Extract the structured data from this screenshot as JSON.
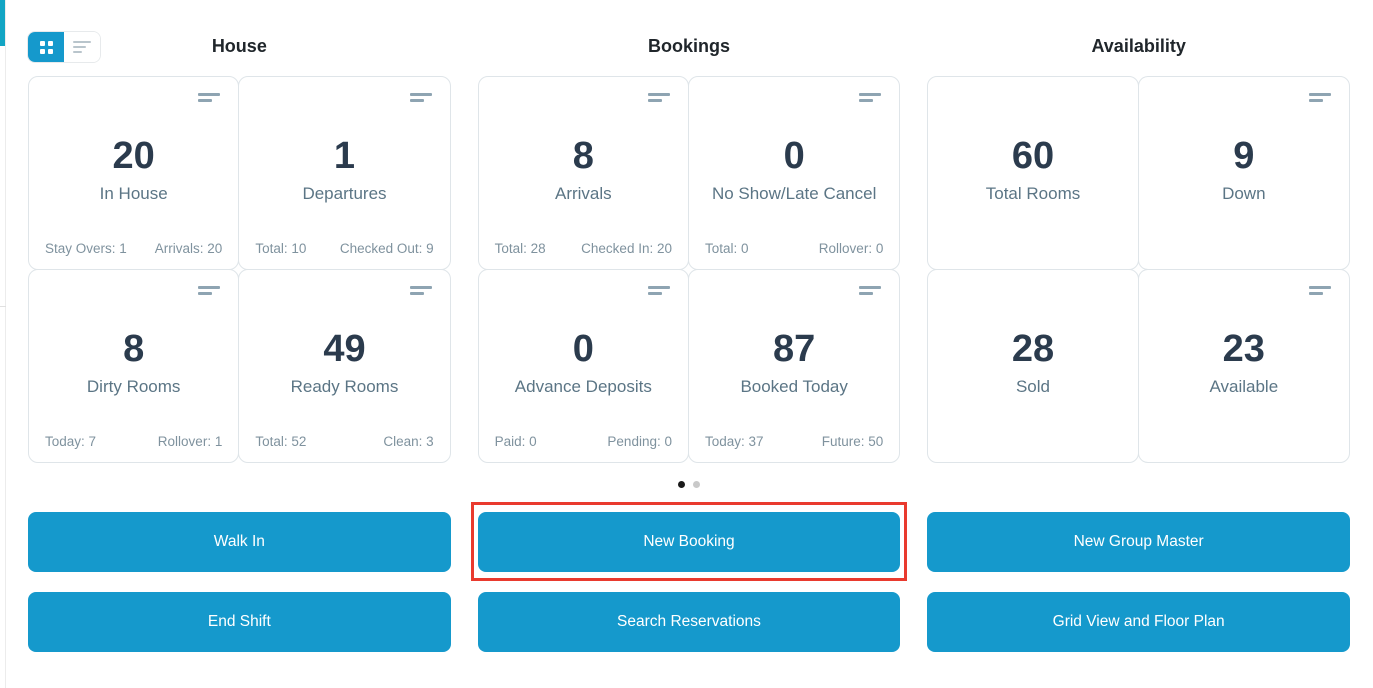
{
  "colors": {
    "primary_blue": "#1599cc",
    "highlight_red": "#e93a2e",
    "accent_edge_bar": "#12a5c4",
    "value_text": "#2b3b4d",
    "label_text": "#5b7585",
    "stat_text": "#7f929e",
    "card_border": "#dfe5e9",
    "dot_active": "#1a1a1a",
    "dot_inactive": "#c9c9c9"
  },
  "view_toggle": {
    "grid": {
      "icon": "grid-view-icon",
      "active": true
    },
    "list": {
      "icon": "list-view-icon",
      "active": false
    }
  },
  "columns": [
    {
      "title": "House",
      "cards": [
        {
          "value": "20",
          "label": "In House",
          "menu_icon": true,
          "stats": {
            "left": "Stay Overs: 1",
            "right": "Arrivals: 20"
          }
        },
        {
          "value": "1",
          "label": "Departures",
          "menu_icon": true,
          "stats": {
            "left": "Total: 10",
            "right": "Checked Out: 9"
          }
        },
        {
          "value": "8",
          "label": "Dirty Rooms",
          "menu_icon": true,
          "stats": {
            "left": "Today: 7",
            "right": "Rollover: 1"
          }
        },
        {
          "value": "49",
          "label": "Ready Rooms",
          "menu_icon": true,
          "stats": {
            "left": "Total: 52",
            "right": "Clean: 3"
          }
        }
      ]
    },
    {
      "title": "Bookings",
      "cards": [
        {
          "value": "8",
          "label": "Arrivals",
          "menu_icon": true,
          "stats": {
            "left": "Total: 28",
            "right": "Checked In: 20"
          }
        },
        {
          "value": "0",
          "label": "No Show/Late Cancel",
          "menu_icon": true,
          "stats": {
            "left": "Total: 0",
            "right": "Rollover: 0"
          }
        },
        {
          "value": "0",
          "label": "Advance Deposits",
          "menu_icon": true,
          "stats": {
            "left": "Paid: 0",
            "right": "Pending: 0"
          }
        },
        {
          "value": "87",
          "label": "Booked Today",
          "menu_icon": true,
          "stats": {
            "left": "Today: 37",
            "right": "Future: 50"
          }
        }
      ]
    },
    {
      "title": "Availability",
      "cards": [
        {
          "value": "60",
          "label": "Total Rooms",
          "menu_icon": false
        },
        {
          "value": "9",
          "label": "Down",
          "menu_icon": true
        },
        {
          "value": "28",
          "label": "Sold",
          "menu_icon": false
        },
        {
          "value": "23",
          "label": "Available",
          "menu_icon": true
        }
      ]
    }
  ],
  "carousel": {
    "dots": [
      {
        "active": true
      },
      {
        "active": false
      }
    ]
  },
  "actions": [
    {
      "label": "Walk In",
      "highlighted": false
    },
    {
      "label": "New Booking",
      "highlighted": true
    },
    {
      "label": "New Group Master",
      "highlighted": false
    },
    {
      "label": "End Shift",
      "highlighted": false
    },
    {
      "label": "Search Reservations",
      "highlighted": false
    },
    {
      "label": "Grid View and Floor Plan",
      "highlighted": false
    }
  ]
}
